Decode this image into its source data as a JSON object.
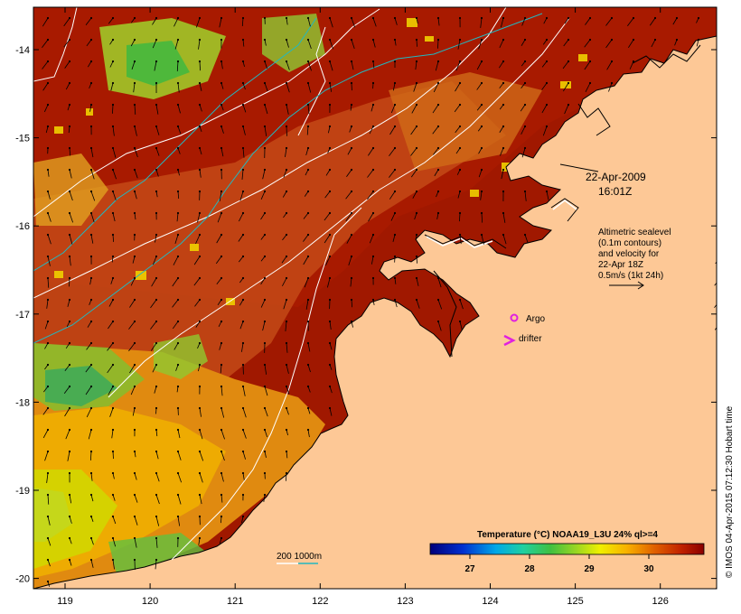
{
  "map": {
    "date": "22-Apr-2009",
    "time": "16:01Z",
    "note_lines": [
      "Altimetric sealevel",
      "(0.1m contours)",
      "and velocity for",
      "22-Apr 18Z",
      "0.5m/s (1kt 24h)"
    ],
    "argo_label": "Argo",
    "drifter_label": "drifter",
    "isobath_label": "200  1000m",
    "colorbar_title": "Temperature (°C) NOAA19_L3U 24% ql>=4",
    "colorbar_ticks": [
      "27",
      "28",
      "29",
      "30"
    ],
    "credit": "© IMOS 04-Apr-2015 07:12:30 Hobart time",
    "lat_labels": [
      "-14",
      "-15",
      "-16",
      "-17",
      "-18",
      "-19",
      "-20"
    ],
    "lon_labels": [
      "119",
      "120",
      "121",
      "122",
      "123",
      "124",
      "125",
      "126"
    ],
    "land_color": "#fdc896",
    "argo_color": "#e020e0",
    "drifter_color": "#e020e0",
    "contour_color": "#ffffff",
    "isobath_color": "#22b8c0"
  }
}
